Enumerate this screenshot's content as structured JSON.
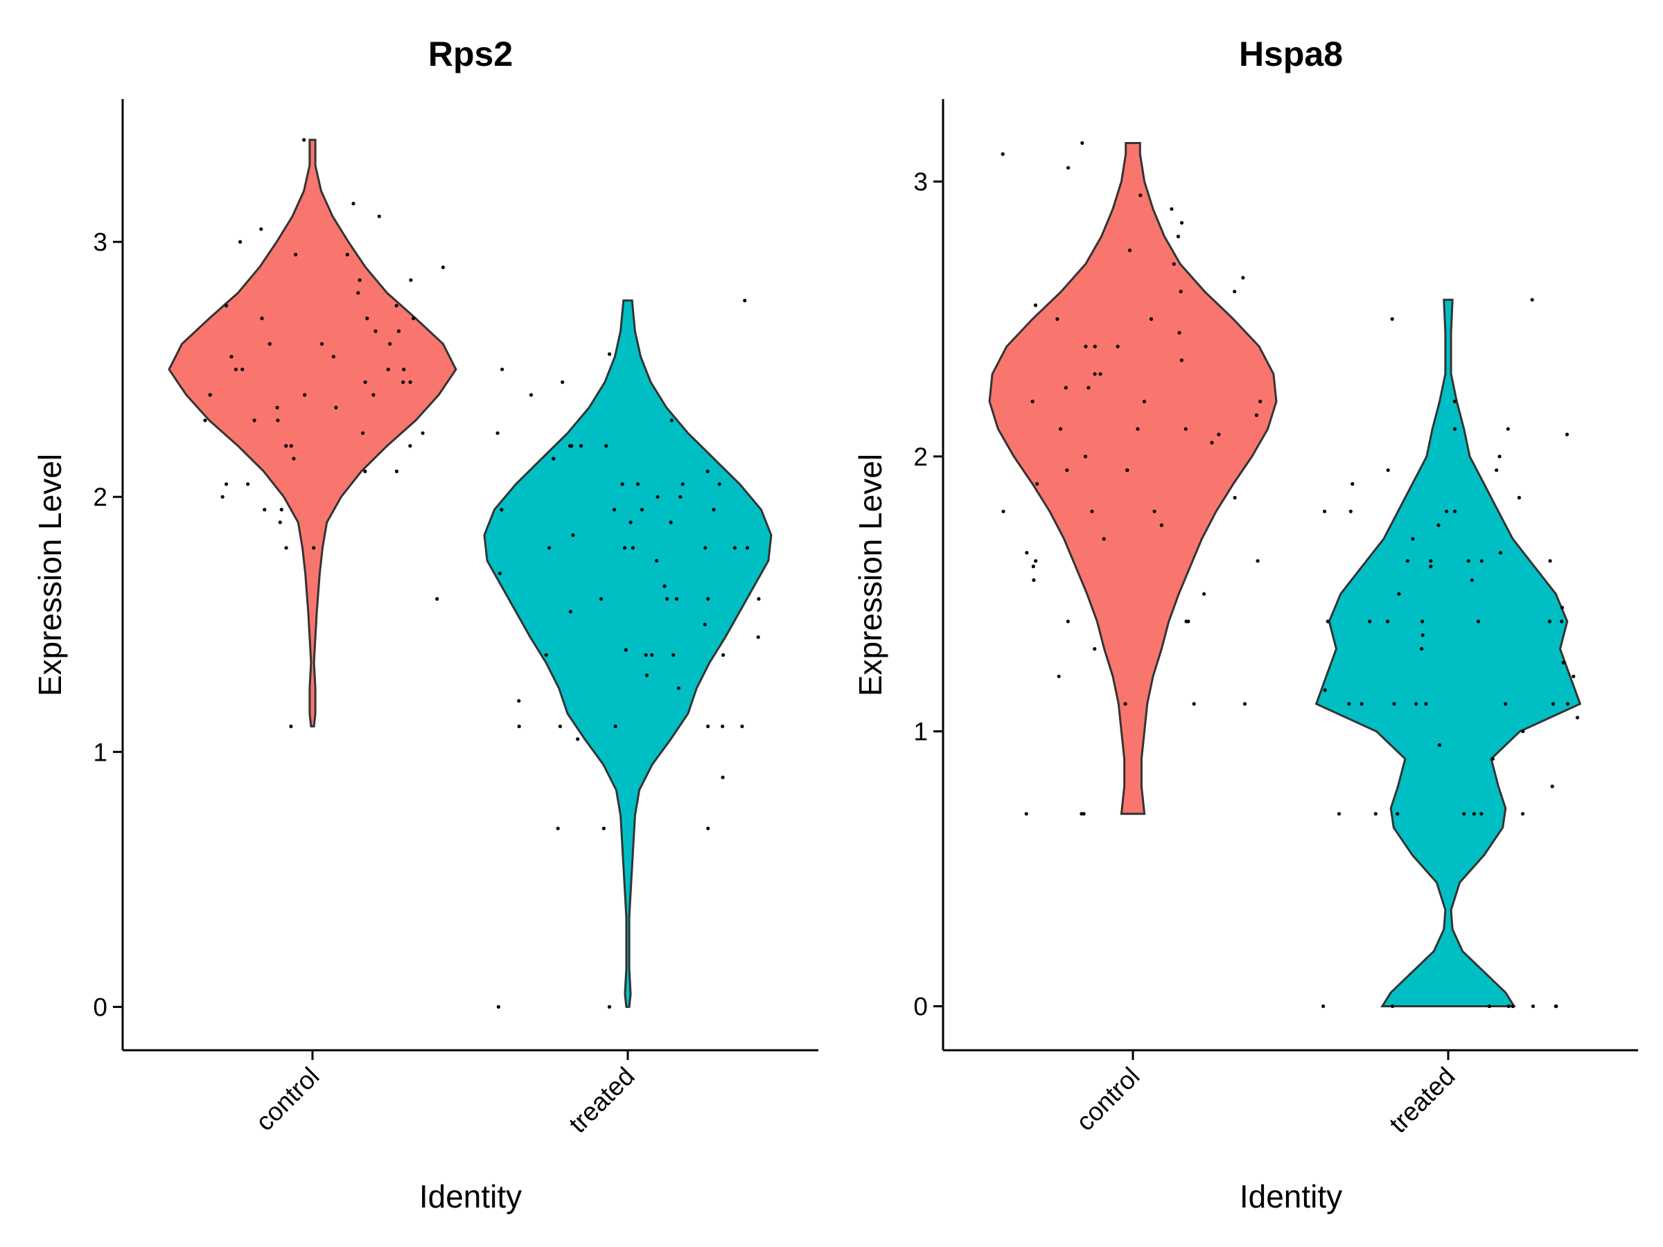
{
  "chart_data": [
    {
      "type": "violin",
      "title": "Rps2",
      "xlabel": "Identity",
      "ylabel": "Expression Level",
      "ylim": [
        -0.17,
        3.56
      ],
      "yticks": [
        0,
        1,
        2,
        3
      ],
      "categories": [
        "control",
        "treated"
      ],
      "colors": {
        "control": "#F8766D",
        "treated": "#00BFC4"
      },
      "grid": false,
      "series": [
        {
          "category": "control",
          "range": [
            1.1,
            3.4
          ],
          "density": [
            [
              1.1,
              0.01
            ],
            [
              1.15,
              0.02
            ],
            [
              1.25,
              0.02
            ],
            [
              1.35,
              0.01
            ],
            [
              1.45,
              0.02
            ],
            [
              1.55,
              0.03
            ],
            [
              1.7,
              0.05
            ],
            [
              1.8,
              0.07
            ],
            [
              1.9,
              0.1
            ],
            [
              2.0,
              0.2
            ],
            [
              2.1,
              0.34
            ],
            [
              2.2,
              0.52
            ],
            [
              2.3,
              0.72
            ],
            [
              2.4,
              0.88
            ],
            [
              2.5,
              1.0
            ],
            [
              2.6,
              0.91
            ],
            [
              2.7,
              0.72
            ],
            [
              2.8,
              0.52
            ],
            [
              2.9,
              0.37
            ],
            [
              3.0,
              0.25
            ],
            [
              3.1,
              0.14
            ],
            [
              3.2,
              0.06
            ],
            [
              3.3,
              0.02
            ],
            [
              3.4,
              0.02
            ]
          ],
          "points": [
            3.15,
            3.05,
            2.95,
            2.9,
            2.85,
            2.8,
            2.75,
            2.7,
            2.7,
            2.65,
            2.65,
            2.6,
            2.6,
            2.55,
            2.55,
            2.5,
            2.5,
            2.5,
            2.45,
            2.45,
            2.4,
            2.4,
            2.4,
            2.35,
            2.3,
            2.3,
            2.25,
            2.2,
            2.2,
            2.15,
            2.1,
            2.05,
            2.0,
            1.95,
            1.9,
            1.8,
            1.6,
            3.4,
            3.1,
            3.0,
            2.95,
            2.85,
            2.75,
            2.7,
            2.6,
            2.5,
            2.45,
            2.4,
            2.35,
            2.3,
            2.25,
            2.2,
            2.1,
            2.05,
            1.95,
            1.8,
            1.1
          ]
        },
        {
          "category": "treated",
          "range": [
            0.0,
            2.77
          ],
          "density": [
            [
              0.0,
              0.01
            ],
            [
              0.05,
              0.02
            ],
            [
              0.15,
              0.01
            ],
            [
              0.25,
              0.01
            ],
            [
              0.35,
              0.01
            ],
            [
              0.45,
              0.02
            ],
            [
              0.55,
              0.03
            ],
            [
              0.65,
              0.04
            ],
            [
              0.75,
              0.05
            ],
            [
              0.85,
              0.08
            ],
            [
              0.95,
              0.17
            ],
            [
              1.05,
              0.3
            ],
            [
              1.15,
              0.42
            ],
            [
              1.25,
              0.48
            ],
            [
              1.35,
              0.57
            ],
            [
              1.45,
              0.68
            ],
            [
              1.55,
              0.78
            ],
            [
              1.65,
              0.88
            ],
            [
              1.75,
              0.98
            ],
            [
              1.85,
              1.0
            ],
            [
              1.95,
              0.93
            ],
            [
              2.05,
              0.78
            ],
            [
              2.15,
              0.6
            ],
            [
              2.25,
              0.42
            ],
            [
              2.35,
              0.27
            ],
            [
              2.45,
              0.16
            ],
            [
              2.55,
              0.09
            ],
            [
              2.65,
              0.05
            ],
            [
              2.77,
              0.03
            ]
          ],
          "points": [
            2.77,
            2.56,
            2.5,
            2.45,
            2.4,
            2.3,
            2.25,
            2.2,
            2.2,
            2.2,
            2.15,
            2.1,
            2.05,
            2.05,
            2.05,
            2.0,
            2.0,
            1.95,
            1.95,
            1.95,
            1.9,
            1.9,
            1.85,
            1.8,
            1.8,
            1.8,
            1.8,
            1.8,
            1.75,
            1.7,
            1.65,
            1.6,
            1.6,
            1.6,
            1.6,
            1.55,
            1.5,
            1.45,
            1.4,
            1.38,
            1.38,
            1.38,
            1.38,
            1.3,
            1.25,
            1.2,
            1.1,
            1.1,
            1.1,
            1.1,
            1.1,
            1.05,
            0.9,
            0.7,
            0.7,
            0.7,
            0.0,
            0.0,
            2.2,
            2.05,
            1.95,
            1.8,
            1.6,
            1.38,
            1.1
          ]
        }
      ]
    },
    {
      "type": "violin",
      "title": "Hspa8",
      "xlabel": "Identity",
      "ylabel": "Expression Level",
      "ylim": [
        -0.16,
        3.3
      ],
      "yticks": [
        0,
        1,
        2,
        3
      ],
      "categories": [
        "control",
        "treated"
      ],
      "colors": {
        "control": "#F8766D",
        "treated": "#00BFC4"
      },
      "grid": false,
      "series": [
        {
          "category": "control",
          "range": [
            0.7,
            3.14
          ],
          "density": [
            [
              0.7,
              0.08
            ],
            [
              0.8,
              0.06
            ],
            [
              0.9,
              0.06
            ],
            [
              1.0,
              0.08
            ],
            [
              1.1,
              0.1
            ],
            [
              1.2,
              0.14
            ],
            [
              1.3,
              0.2
            ],
            [
              1.4,
              0.25
            ],
            [
              1.5,
              0.32
            ],
            [
              1.6,
              0.4
            ],
            [
              1.7,
              0.48
            ],
            [
              1.8,
              0.58
            ],
            [
              1.9,
              0.7
            ],
            [
              2.0,
              0.83
            ],
            [
              2.1,
              0.94
            ],
            [
              2.2,
              1.0
            ],
            [
              2.3,
              0.98
            ],
            [
              2.4,
              0.88
            ],
            [
              2.5,
              0.7
            ],
            [
              2.6,
              0.5
            ],
            [
              2.7,
              0.33
            ],
            [
              2.8,
              0.22
            ],
            [
              2.9,
              0.14
            ],
            [
              3.0,
              0.08
            ],
            [
              3.1,
              0.05
            ],
            [
              3.14,
              0.05
            ]
          ],
          "points": [
            3.14,
            3.1,
            3.05,
            2.95,
            2.9,
            2.85,
            2.8,
            2.75,
            2.7,
            2.65,
            2.6,
            2.55,
            2.5,
            2.5,
            2.45,
            2.4,
            2.4,
            2.35,
            2.3,
            2.3,
            2.25,
            2.25,
            2.2,
            2.2,
            2.15,
            2.1,
            2.1,
            2.08,
            2.05,
            2.0,
            1.95,
            1.95,
            1.9,
            1.85,
            1.8,
            1.8,
            1.75,
            1.7,
            1.65,
            1.62,
            1.6,
            1.55,
            1.5,
            1.4,
            1.4,
            1.3,
            1.2,
            1.1,
            1.1,
            0.7,
            0.7,
            2.6,
            2.4,
            2.2,
            2.1,
            1.95,
            1.8,
            1.62,
            1.4,
            1.1,
            0.7
          ]
        },
        {
          "category": "treated",
          "range": [
            0.0,
            2.57
          ],
          "density": [
            [
              0.0,
              0.46
            ],
            [
              0.05,
              0.4
            ],
            [
              0.1,
              0.3
            ],
            [
              0.15,
              0.2
            ],
            [
              0.2,
              0.1
            ],
            [
              0.28,
              0.03
            ],
            [
              0.35,
              0.02
            ],
            [
              0.45,
              0.08
            ],
            [
              0.55,
              0.25
            ],
            [
              0.65,
              0.38
            ],
            [
              0.72,
              0.4
            ],
            [
              0.8,
              0.35
            ],
            [
              0.9,
              0.3
            ],
            [
              1.0,
              0.5
            ],
            [
              1.1,
              0.92
            ],
            [
              1.2,
              0.85
            ],
            [
              1.3,
              0.78
            ],
            [
              1.4,
              0.83
            ],
            [
              1.5,
              0.75
            ],
            [
              1.6,
              0.6
            ],
            [
              1.7,
              0.45
            ],
            [
              1.8,
              0.35
            ],
            [
              1.9,
              0.25
            ],
            [
              2.0,
              0.15
            ],
            [
              2.1,
              0.11
            ],
            [
              2.2,
              0.06
            ],
            [
              2.3,
              0.02
            ],
            [
              2.45,
              0.02
            ],
            [
              2.57,
              0.03
            ]
          ],
          "points": [
            2.57,
            2.5,
            2.2,
            2.1,
            2.1,
            2.0,
            1.95,
            1.95,
            1.9,
            1.85,
            1.8,
            1.8,
            1.8,
            1.75,
            1.7,
            1.65,
            1.62,
            1.62,
            1.62,
            1.62,
            1.6,
            1.55,
            1.5,
            1.45,
            1.4,
            1.4,
            1.4,
            1.4,
            1.4,
            1.4,
            1.35,
            1.3,
            1.25,
            1.2,
            1.15,
            1.1,
            1.1,
            1.1,
            1.1,
            1.1,
            1.1,
            1.1,
            1.05,
            1.0,
            0.95,
            0.9,
            0.8,
            0.7,
            0.7,
            0.7,
            0.7,
            0.7,
            0.7,
            0.0,
            0.0,
            0.0,
            0.0,
            0.0,
            0.0,
            0.0,
            2.08,
            1.8,
            1.62,
            1.4,
            1.1,
            0.7,
            0.0
          ]
        }
      ]
    }
  ]
}
